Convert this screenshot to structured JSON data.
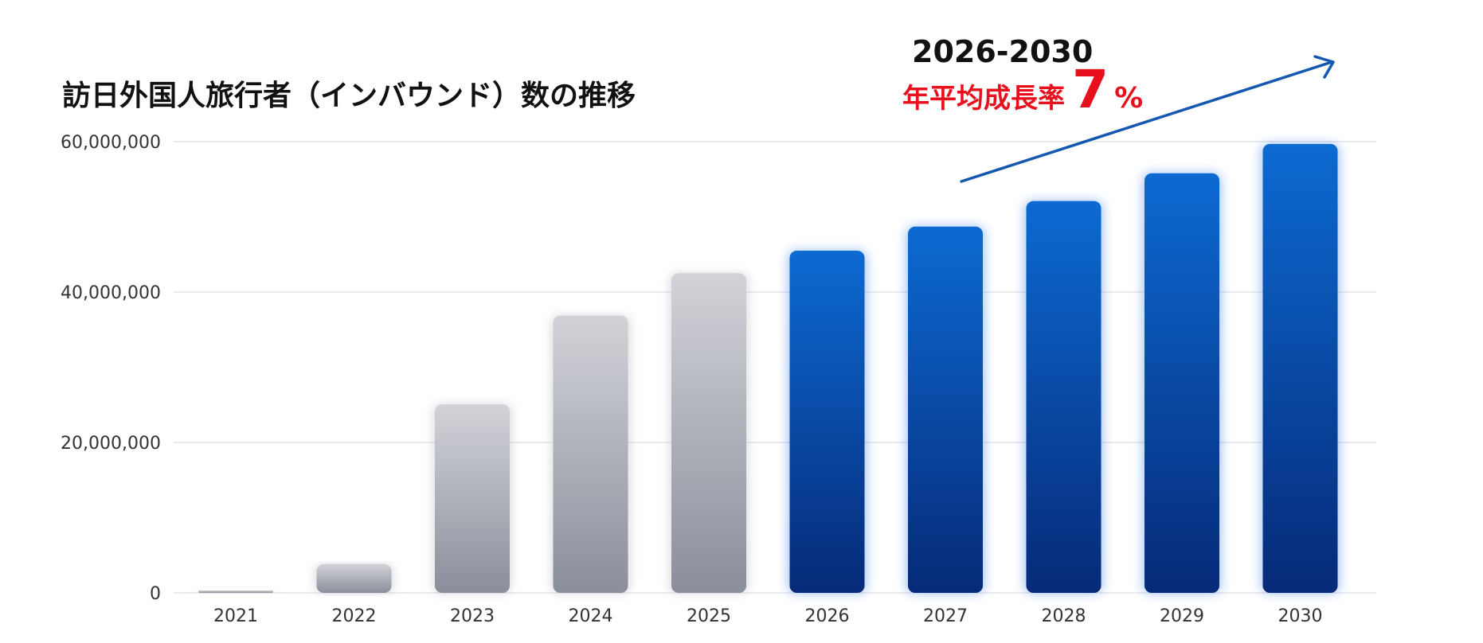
{
  "chart_data": {
    "type": "bar",
    "title": "訪日外国人旅行者（インバウンド）数の推移",
    "categories": [
      "2021",
      "2022",
      "2023",
      "2024",
      "2025",
      "2026",
      "2027",
      "2028",
      "2029",
      "2030"
    ],
    "values": [
      250000,
      3830000,
      25070000,
      36870000,
      42500000,
      45500000,
      48700000,
      52100000,
      55800000,
      59700000
    ],
    "highlight_from": "2026",
    "ylim": [
      0,
      60000000
    ],
    "yticks": [
      0,
      20000000,
      40000000,
      60000000
    ],
    "ytick_labels": [
      "0",
      "20,000,000",
      "40,000,000",
      "60,000,000"
    ],
    "xlabel": "",
    "ylabel": "",
    "grid": true,
    "colors": {
      "actual_top": "#d2d3d8",
      "actual_bottom": "#8b8e9b",
      "forecast_top": "#0c6ad2",
      "forecast_bottom": "#062a78",
      "arrow": "#1558b0",
      "accent_text": "#e8101c"
    },
    "annotation": {
      "years": "2026-2030",
      "label": "年平均成長率",
      "rate": "7",
      "unit": "%",
      "arrow": "trend-up-arrow"
    }
  }
}
